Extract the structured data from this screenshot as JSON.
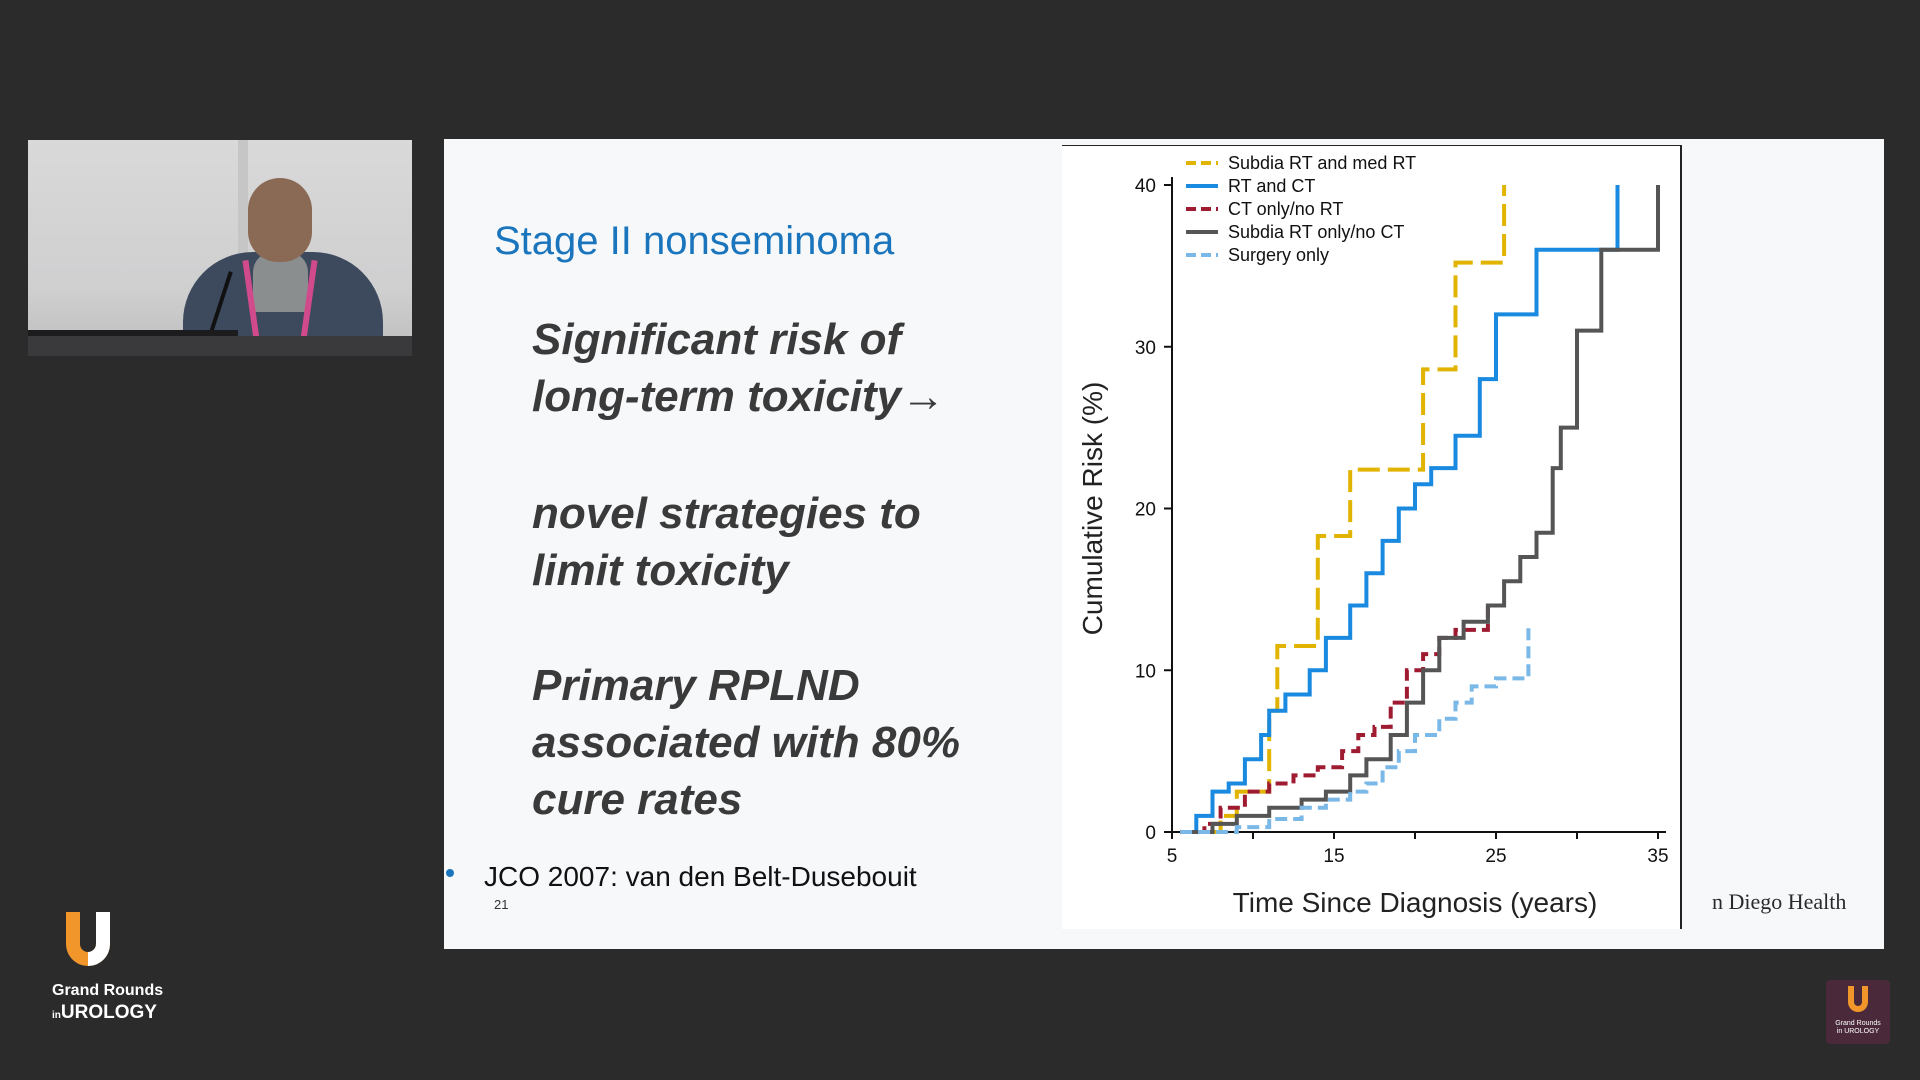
{
  "slide": {
    "title": "Stage II nonseminoma",
    "bullets": [
      "Significant risk of",
      "long-term toxicity→",
      "novel strategies to",
      "limit toxicity",
      "Primary RPLND",
      "associated with 80%",
      "cure rates"
    ],
    "reference": "JCO 2007: van den Belt-Dusebouit",
    "page_number": "21",
    "brand_text": "n Diego Health"
  },
  "logo": {
    "line1": "Grand Rounds",
    "line2_prefix": "in",
    "line2": "UROLOGY",
    "watermark_line1": "Grand Rounds",
    "watermark_line2": "in UROLOGY"
  },
  "colors": {
    "title_blue": "#1b75bc",
    "slide_bg": "#f6f8fa",
    "logo_orange": "#f0962a"
  },
  "chart_data": {
    "type": "line",
    "xlabel": "Time Since Diagnosis (years)",
    "ylabel": "Cumulative Risk (%)",
    "xlim": [
      5,
      35
    ],
    "ylim": [
      0,
      40
    ],
    "xticks": [
      5,
      15,
      25,
      35
    ],
    "yticks": [
      0,
      10,
      20,
      30,
      40
    ],
    "legend_position": "top-left",
    "series": [
      {
        "name": "Subdia RT and med RT",
        "color": "#e0b400",
        "dash": "dash",
        "x": [
          5.5,
          8,
          9,
          10.5,
          11,
          11.5,
          13.5,
          14,
          15.5,
          16,
          20,
          20.5,
          22,
          22.5,
          25,
          25.5,
          25.5
        ],
        "y": [
          0,
          1,
          2.5,
          2.5,
          7.5,
          11.5,
          11.5,
          18.3,
          18.3,
          22.4,
          22.4,
          28.6,
          28.6,
          35.2,
          35.2,
          35.2,
          40
        ]
      },
      {
        "name": "RT and CT",
        "color": "#1a8ae0",
        "dash": "solid",
        "x": [
          5.5,
          6.5,
          7.5,
          8.5,
          9.5,
          10.5,
          11,
          12,
          13.5,
          14.5,
          16,
          17,
          18,
          19,
          20,
          21,
          22.5,
          24,
          25,
          27.5,
          30,
          32.5,
          32.5
        ],
        "y": [
          0,
          1,
          2.5,
          3,
          4.5,
          6,
          7.5,
          8.5,
          10,
          12,
          14,
          16,
          18,
          20,
          21.5,
          22.5,
          24.5,
          28,
          32,
          36,
          36,
          36,
          40
        ]
      },
      {
        "name": "CT only/no RT",
        "color": "#9e1b32",
        "dash": "dash",
        "x": [
          5.5,
          7,
          8,
          9.5,
          11,
          12.5,
          14,
          15.5,
          16.5,
          17.5,
          18.5,
          19.5,
          20.5,
          21.5,
          22.5,
          24.5
        ],
        "y": [
          0,
          0.5,
          1.5,
          2.5,
          3,
          3.5,
          4,
          5,
          6,
          6.5,
          8,
          10,
          11,
          12,
          12.5,
          14
        ]
      },
      {
        "name": "Subdia RT only/no CT",
        "color": "#555555",
        "dash": "solid",
        "x": [
          5.5,
          7.5,
          9,
          11,
          13,
          14.5,
          16,
          17,
          18.5,
          19.5,
          20.5,
          21.5,
          23,
          24.5,
          25.5,
          26.5,
          27.5,
          28.5,
          29,
          30,
          31.5,
          33.5,
          35
        ],
        "y": [
          0,
          0.5,
          1,
          1.5,
          2,
          2.5,
          3.5,
          4.5,
          6,
          8,
          10,
          12,
          13,
          14,
          15.5,
          17,
          18.5,
          22.5,
          25,
          31,
          36,
          36,
          40
        ]
      },
      {
        "name": "Surgery only",
        "color": "#7ab8e8",
        "dash": "dash",
        "x": [
          5.5,
          9,
          11,
          13,
          14.5,
          16,
          17,
          18,
          19,
          20,
          21.5,
          22.5,
          23.5,
          25,
          27,
          27
        ],
        "y": [
          0,
          0.3,
          0.8,
          1.5,
          2,
          2.5,
          3,
          4,
          5,
          6,
          7,
          8,
          9,
          9.5,
          9.5,
          12.8
        ]
      }
    ]
  }
}
